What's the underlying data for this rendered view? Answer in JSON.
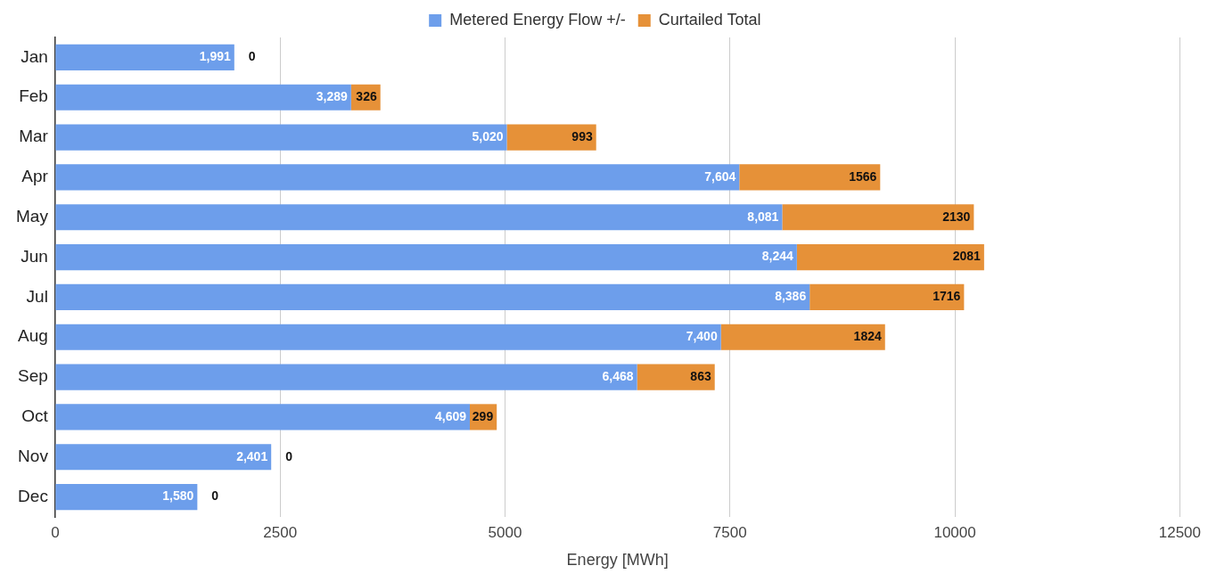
{
  "chart_data": {
    "type": "bar",
    "orientation": "horizontal",
    "stacked": true,
    "xlabel": "Energy [MWh]",
    "categories": [
      "Jan",
      "Feb",
      "Mar",
      "Apr",
      "May",
      "Jun",
      "Jul",
      "Aug",
      "Sep",
      "Oct",
      "Nov",
      "Dec"
    ],
    "series": [
      {
        "name": "Metered Energy Flow +/-",
        "color": "#6d9eeb",
        "values": [
          1991,
          3289,
          5020,
          7604,
          8081,
          8244,
          8386,
          7400,
          6468,
          4609,
          2401,
          1580
        ],
        "value_labels": [
          "1,991",
          "3,289",
          "5,020",
          "7,604",
          "8,081",
          "8,244",
          "8,386",
          "7,400",
          "6,468",
          "4,609",
          "2,401",
          "1,580"
        ]
      },
      {
        "name": "Curtailed Total",
        "color": "#e69138",
        "values": [
          0,
          326,
          993,
          1566,
          2130,
          2081,
          1716,
          1824,
          863,
          299,
          0,
          0
        ],
        "value_labels": [
          "0",
          "326",
          "993",
          "1566",
          "2130",
          "2081",
          "1716",
          "1824",
          "863",
          "299",
          "0",
          "0"
        ]
      }
    ],
    "xlim": [
      0,
      12500
    ],
    "xticks": [
      0,
      2500,
      5000,
      7500,
      10000,
      12500
    ],
    "grid": "x",
    "legend": "top"
  }
}
